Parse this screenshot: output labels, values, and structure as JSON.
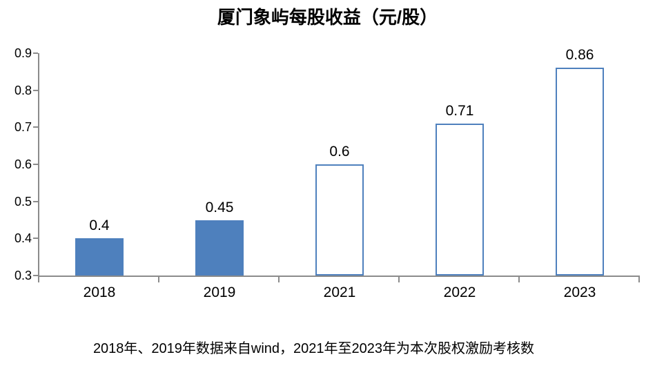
{
  "chart_data": {
    "type": "bar",
    "title": "厦门象屿每股收益（元/股）",
    "categories": [
      "2018",
      "2019",
      "2021",
      "2022",
      "2023"
    ],
    "values": [
      0.4,
      0.45,
      0.6,
      0.71,
      0.86
    ],
    "data_labels": [
      "0.4",
      "0.45",
      "0.6",
      "0.71",
      "0.86"
    ],
    "xlabel": "",
    "ylabel": "",
    "ylim": [
      0.3,
      0.9
    ],
    "yticks": [
      0.3,
      0.4,
      0.5,
      0.6,
      0.7,
      0.8,
      0.9
    ],
    "ytick_labels": [
      "0.3",
      "0.4",
      "0.5",
      "0.6",
      "0.7",
      "0.8",
      "0.9"
    ],
    "grid": false,
    "legend": "none",
    "bar_fill_mode": [
      "solid",
      "solid",
      "outline",
      "outline",
      "outline"
    ],
    "colors": {
      "bar_solid": "#4E80BD",
      "bar_outline": "#4E80BD",
      "bar_hollow_fill": "#FFFFFF",
      "axis_line": "#8B8B8B",
      "text": "#000000"
    }
  },
  "footnote": "2018年、2019年数据来自wind，2021年至2023年为本次股权激励考核数"
}
